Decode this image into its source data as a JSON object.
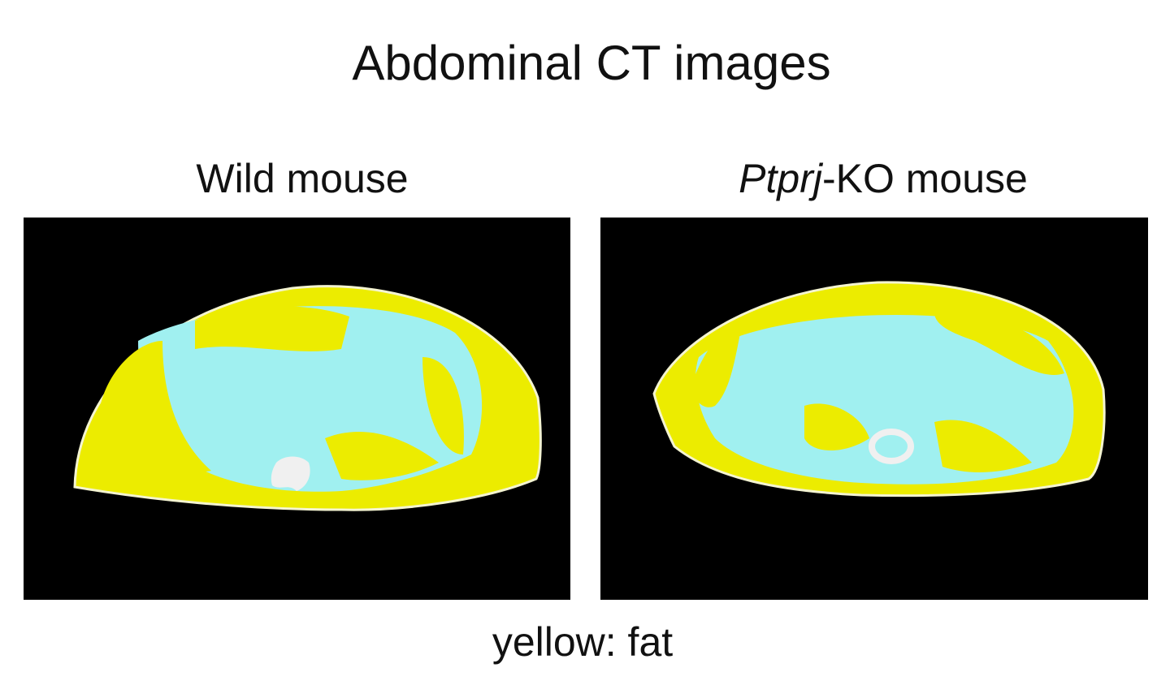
{
  "title": "Abdominal CT images",
  "panels": [
    {
      "label": [
        "Wild mouse"
      ]
    },
    {
      "label": [
        "Ptprj",
        "-KO mouse"
      ]
    }
  ],
  "caption": "yellow: fat"
}
